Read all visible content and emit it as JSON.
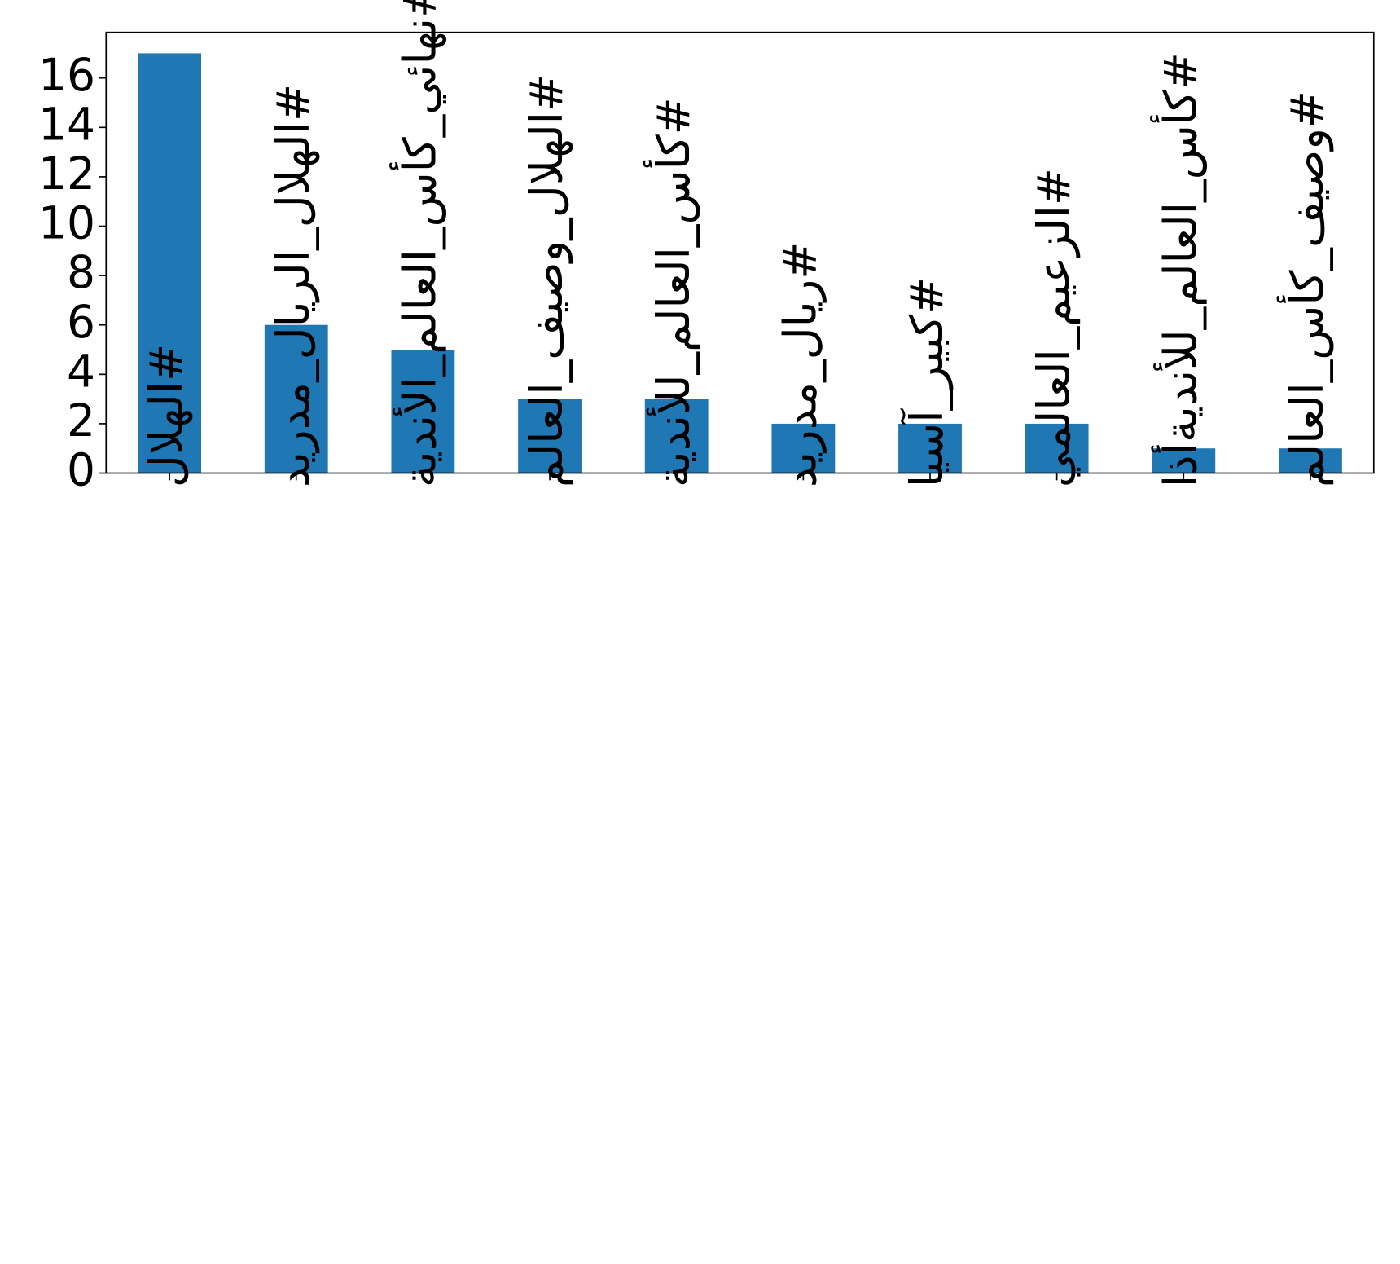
{
  "chart_data": {
    "type": "bar",
    "categories": [
      "#الهلال",
      "#الهلال_الريال_مدريد",
      "#نهائي_كأس_العالم_الأندية",
      "#الهلال_وصيف_العالم",
      "#كأس_العالم_للأندية",
      "#ريال_مدريد",
      "#كبير_آسيا",
      "#الزعيم_العالمي",
      "#كأس_العالم_للأنديةأذا",
      "#وصيف_كأس_العالم"
    ],
    "values": [
      17,
      6,
      5,
      3,
      3,
      2,
      2,
      2,
      1,
      1
    ],
    "color": "#1f77b4",
    "ylim": [
      0,
      17.85
    ],
    "yticks": [
      0,
      2,
      4,
      6,
      8,
      10,
      12,
      14,
      16
    ],
    "grid": false
  }
}
